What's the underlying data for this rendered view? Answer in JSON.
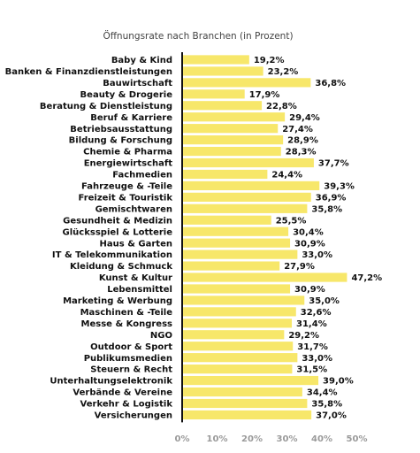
{
  "chart_data": {
    "type": "bar",
    "orientation": "horizontal",
    "title": "Öffnungsrate nach Branchen (in Prozent)",
    "xlabel": "",
    "ylabel": "",
    "xlim": [
      0,
      50
    ],
    "x_ticks": [
      0,
      10,
      20,
      30,
      40,
      50
    ],
    "tick_labels": [
      "0%",
      "10%",
      "20%",
      "30%",
      "40%",
      "50%"
    ],
    "grid": false,
    "bar_color": "#F7E76A",
    "axis_color": "#111111",
    "categories": [
      "Baby & Kind",
      "Banken & Finanzdienstleistungen",
      "Bauwirtschaft",
      "Beauty & Drogerie",
      "Beratung & Dienstleistung",
      "Beruf & Karriere",
      "Betriebsausstattung",
      "Bildung & Forschung",
      "Chemie & Pharma",
      "Energiewirtschaft",
      "Fachmedien",
      "Fahrzeuge & -Teile",
      "Freizeit & Touristik",
      "Gemischtwaren",
      "Gesundheit & Medizin",
      "Glücksspiel & Lotterie",
      "Haus & Garten",
      "IT & Telekommunikation",
      "Kleidung & Schmuck",
      "Kunst & Kultur",
      "Lebensmittel",
      "Marketing & Werbung",
      "Maschinen & -Teile",
      "Messe & Kongress",
      "NGO",
      "Outdoor & Sport",
      "Publikumsmedien",
      "Steuern & Recht",
      "Unterhaltungselektronik",
      "Verbände & Vereine",
      "Verkehr & Logistik",
      "Versicherungen"
    ],
    "values": [
      19.2,
      23.2,
      36.8,
      17.9,
      22.8,
      29.4,
      27.4,
      28.9,
      28.3,
      37.7,
      24.4,
      39.3,
      36.9,
      35.8,
      25.5,
      30.4,
      30.9,
      33.0,
      27.9,
      47.2,
      30.9,
      35.0,
      32.6,
      31.4,
      29.2,
      31.7,
      33.0,
      31.5,
      39.0,
      34.4,
      35.8,
      37.0
    ],
    "value_labels": [
      "19,2%",
      "23,2%",
      "36,8%",
      "17,9%",
      "22,8%",
      "29,4%",
      "27,4%",
      "28,9%",
      "28,3%",
      "37,7%",
      "24,4%",
      "39,3%",
      "36,9%",
      "35,8%",
      "25,5%",
      "30,4%",
      "30,9%",
      "33,0%",
      "27,9%",
      "47,2%",
      "30,9%",
      "35,0%",
      "32,6%",
      "31,4%",
      "29,2%",
      "31,7%",
      "33,0%",
      "31,5%",
      "39,0%",
      "34,4%",
      "35,8%",
      "37,0%"
    ]
  }
}
